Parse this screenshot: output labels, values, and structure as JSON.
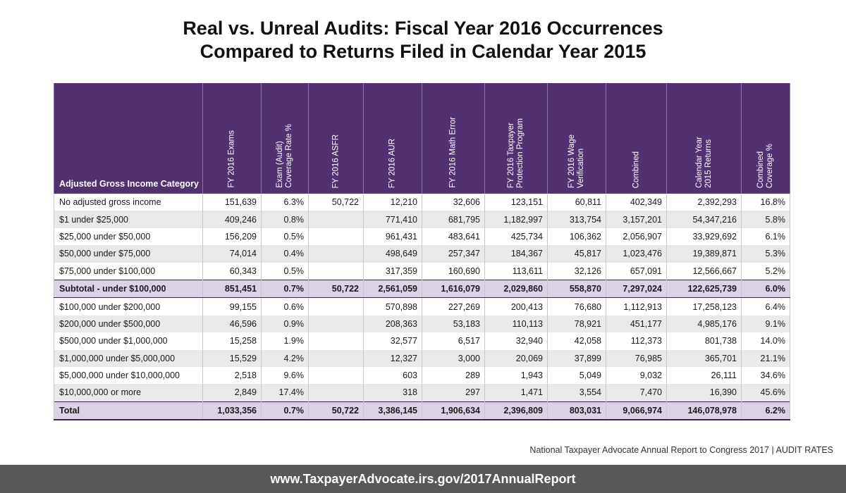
{
  "title": {
    "line1": "Real vs. Unreal Audits: Fiscal Year 2016 Occurrences",
    "line2": "Compared to Returns Filed in Calendar Year 2015"
  },
  "table": {
    "headers": [
      "Adjusted Gross Income Category",
      "FY 2016 Exams",
      "Exam (Audit)\nCoverage Rate %",
      "FY 2016 ASFR",
      "FY 2016 AUR",
      "FY 2016 Math Error",
      "FY 2016 Taxpayer\nProtection Program",
      "FY 2016 Wage\nVerification",
      "Combined",
      "Calendar Year\n2015 Returns",
      "Combined\nCoverage %"
    ],
    "rows": [
      [
        "No adjusted gross income",
        "151,639",
        "6.3%",
        "50,722",
        "12,210",
        "32,606",
        "123,151",
        "60,811",
        "402,349",
        "2,392,293",
        "16.8%"
      ],
      [
        "$1 under $25,000",
        "409,246",
        "0.8%",
        "",
        "771,410",
        "681,795",
        "1,182,997",
        "313,754",
        "3,157,201",
        "54,347,216",
        "5.8%"
      ],
      [
        "$25,000 under $50,000",
        "156,209",
        "0.5%",
        "",
        "961,431",
        "483,641",
        "425,734",
        "106,362",
        "2,056,907",
        "33,929,692",
        "6.1%"
      ],
      [
        "$50,000 under $75,000",
        "74,014",
        "0.4%",
        "",
        "498,649",
        "257,347",
        "184,367",
        "45,817",
        "1,023,476",
        "19,389,871",
        "5.3%"
      ],
      [
        "$75,000 under $100,000",
        "60,343",
        "0.5%",
        "",
        "317,359",
        "160,690",
        "113,611",
        "32,126",
        "657,091",
        "12,566,667",
        "5.2%"
      ],
      [
        "Subtotal - under $100,000",
        "851,451",
        "0.7%",
        "50,722",
        "2,561,059",
        "1,616,079",
        "2,029,860",
        "558,870",
        "7,297,024",
        "122,625,739",
        "6.0%"
      ],
      [
        "$100,000 under $200,000",
        "99,155",
        "0.6%",
        "",
        "570,898",
        "227,269",
        "200,413",
        "76,680",
        "1,112,913",
        "17,258,123",
        "6.4%"
      ],
      [
        "$200,000 under $500,000",
        "46,596",
        "0.9%",
        "",
        "208,363",
        "53,183",
        "110,113",
        "78,921",
        "451,177",
        "4,985,176",
        "9.1%"
      ],
      [
        "$500,000 under $1,000,000",
        "15,258",
        "1.9%",
        "",
        "32,577",
        "6,517",
        "32,940",
        "42,058",
        "112,373",
        "801,738",
        "14.0%"
      ],
      [
        "$1,000,000 under $5,000,000",
        "15,529",
        "4.2%",
        "",
        "12,327",
        "3,000",
        "20,069",
        "37,899",
        "76,985",
        "365,701",
        "21.1%"
      ],
      [
        "$5,000,000 under $10,000,000",
        "2,518",
        "9.6%",
        "",
        "603",
        "289",
        "1,943",
        "5,049",
        "9,032",
        "26,111",
        "34.6%"
      ],
      [
        "$10,000,000 or more",
        "2,849",
        "17.4%",
        "",
        "318",
        "297",
        "1,471",
        "3,554",
        "7,470",
        "16,390",
        "45.6%"
      ],
      [
        "Total",
        "1,033,356",
        "0.7%",
        "50,722",
        "3,386,145",
        "1,906,634",
        "2,396,809",
        "803,031",
        "9,066,974",
        "146,078,978",
        "6.2%"
      ]
    ]
  },
  "source": "National Taxpayer Advocate Annual Report to Congress 2017  |  AUDIT RATES",
  "footer_url": "www.TaxpayerAdvocate.irs.gov/2017AnnualReport",
  "colors": {
    "header_purple": "#523173",
    "highlight_row": "#dad3e6",
    "stripe_gray": "#e9e9e9",
    "footer_gray": "#585858"
  }
}
